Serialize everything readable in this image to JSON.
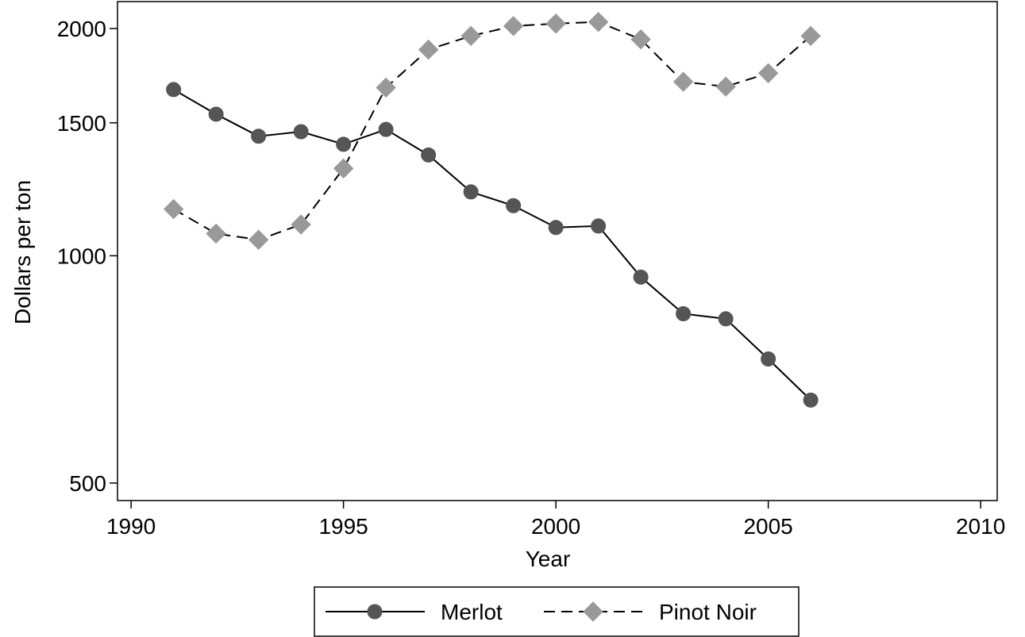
{
  "chart_data": {
    "type": "line",
    "x": [
      1991,
      1992,
      1993,
      1994,
      1995,
      1996,
      1997,
      1998,
      1999,
      2000,
      2001,
      2002,
      2003,
      2004,
      2005,
      2006
    ],
    "series": [
      {
        "name": "Merlot",
        "color": "#555555",
        "values": [
          1660,
          1540,
          1440,
          1460,
          1405,
          1470,
          1360,
          1215,
          1165,
          1090,
          1095,
          937,
          838,
          825,
          730,
          644
        ]
      },
      {
        "name": "Pinot Noir",
        "color": "#999999",
        "values": [
          1153,
          1070,
          1050,
          1100,
          1305,
          1670,
          1875,
          1955,
          2015,
          2030,
          2040,
          1935,
          1700,
          1675,
          1745,
          1955
        ]
      }
    ],
    "xlabel": "Year",
    "ylabel": "Dollars per ton",
    "xlim": [
      1989.68,
      2010.39
    ],
    "xticks": [
      1990,
      1995,
      2000,
      2005,
      2010
    ],
    "ylim": [
      474,
      2171
    ],
    "yticks": [
      500,
      1000,
      1500,
      2000
    ],
    "ylog": true,
    "legend": "bottom"
  }
}
